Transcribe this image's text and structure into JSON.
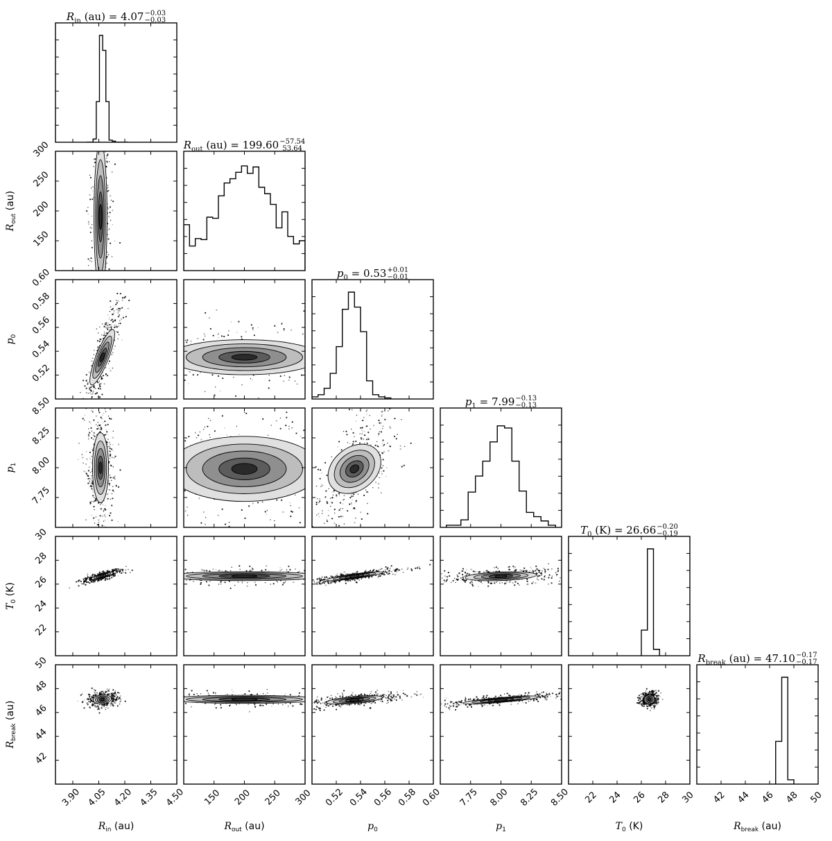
{
  "chart_data": {
    "type": "corner",
    "parameters": [
      {
        "id": "rin",
        "symbol": "R",
        "sub": "in",
        "unit": "(au)",
        "range": [
          3.8,
          4.5
        ],
        "ticks": [
          "3.90",
          "4.05",
          "4.20",
          "4.35",
          "4.50"
        ],
        "tick_values": [
          3.9,
          4.05,
          4.2,
          4.35,
          4.5
        ],
        "title": {
          "value": "4.07",
          "plus": "−0.03",
          "minus": "−0.03"
        },
        "hist": [
          0,
          0,
          0.03,
          0.38,
          1.0,
          0.86,
          0.38,
          0.02,
          0.01,
          0,
          0,
          0,
          0
        ],
        "hist_range": [
          3.98,
          4.22
        ]
      },
      {
        "id": "rout",
        "symbol": "R",
        "sub": "out",
        "unit": "(au)",
        "range": [
          100,
          300
        ],
        "ticks": [
          "150",
          "200",
          "250",
          "300"
        ],
        "tick_values": [
          150,
          200,
          250,
          300
        ],
        "title": {
          "value": "199.60",
          "plus": "−57.54",
          "minus": "53.64"
        },
        "hist": [
          0.43,
          0.23,
          0.3,
          0.29,
          0.5,
          0.49,
          0.7,
          0.82,
          0.86,
          0.92,
          0.98,
          0.91,
          0.97,
          0.78,
          0.72,
          0.62,
          0.4,
          0.55,
          0.32,
          0.25,
          0.28
        ],
        "hist_range": [
          100,
          300
        ]
      },
      {
        "id": "p0",
        "symbol": "p",
        "sub": "0",
        "unit": "",
        "range": [
          0.5,
          0.6
        ],
        "ticks": [
          "0.52",
          "0.54",
          "0.56",
          "0.58",
          "0.60"
        ],
        "tick_values": [
          0.52,
          0.54,
          0.56,
          0.58,
          0.6
        ],
        "title": {
          "value": "0.53",
          "plus": "+0.01",
          "minus": "−0.01"
        },
        "hist": [
          0.02,
          0.04,
          0.1,
          0.24,
          0.49,
          0.84,
          1.0,
          0.86,
          0.63,
          0.17,
          0.04,
          0.02,
          0.01
        ],
        "hist_range": [
          0.5,
          0.565
        ]
      },
      {
        "id": "p1",
        "symbol": "p",
        "sub": "1",
        "unit": "",
        "range": [
          7.5,
          8.5
        ],
        "ticks": [
          "7.75",
          "8.00",
          "8.25",
          "8.50"
        ],
        "tick_values": [
          7.75,
          8.0,
          8.25,
          8.5
        ],
        "title": {
          "value": "7.99",
          "plus": "−0.13",
          "minus": "−0.13"
        },
        "hist": [
          0.02,
          0.02,
          0.07,
          0.33,
          0.48,
          0.62,
          0.8,
          0.95,
          0.93,
          0.62,
          0.34,
          0.14,
          0.1,
          0.06,
          0.02
        ],
        "hist_range": [
          7.55,
          8.45
        ]
      },
      {
        "id": "t0",
        "symbol": "T",
        "sub": "0",
        "unit": "(K)",
        "range": [
          20,
          30
        ],
        "ticks": [
          "22",
          "24",
          "26",
          "28",
          "30"
        ],
        "tick_values": [
          22,
          24,
          26,
          28,
          30
        ],
        "title": {
          "value": "26.66",
          "plus": "−0.20",
          "minus": "−0.19"
        },
        "hist": [
          0.24,
          1.0,
          0.06
        ],
        "hist_range": [
          26.0,
          27.5
        ]
      },
      {
        "id": "rbreak",
        "symbol": "R",
        "sub": "break",
        "unit": "(au)",
        "range": [
          40,
          50
        ],
        "ticks": [
          "42",
          "44",
          "46",
          "48",
          "50"
        ],
        "tick_values": [
          42,
          44,
          46,
          48,
          50
        ],
        "title": {
          "value": "47.10",
          "plus": "−0.17",
          "minus": "−0.17"
        },
        "hist": [
          0.4,
          1.0,
          0.04
        ],
        "hist_range": [
          46.5,
          48.0
        ]
      }
    ],
    "ytick_overrides": {
      "rout": {
        "ticks": [
          "150",
          "200",
          "250",
          "300"
        ]
      },
      "p0": {
        "ticks": [
          "0.52",
          "0.54",
          "0.56",
          "0.58",
          "0.60"
        ]
      },
      "p1": {
        "ticks": [
          "7.75",
          "8.00",
          "8.25",
          "8.50"
        ]
      },
      "t0": {
        "ticks": [
          "22",
          "24",
          "26",
          "28",
          "30"
        ]
      },
      "rbreak": {
        "ticks": [
          "42",
          "44",
          "46",
          "48",
          "50"
        ]
      }
    },
    "pair_blobs": {
      "rout|rin": {
        "cx": 4.06,
        "cy": 190,
        "sx": 0.018,
        "sy": 60,
        "rho": 0.0
      },
      "p0|rin": {
        "cx": 4.07,
        "cy": 0.535,
        "sx": 0.03,
        "sy": 0.013,
        "rho": 0.85
      },
      "p0|rout": {
        "cx": 200,
        "cy": 0.535,
        "sx": 60,
        "sy": 0.007,
        "rho": 0.0
      },
      "p1|rin": {
        "cx": 4.06,
        "cy": 8.0,
        "sx": 0.022,
        "sy": 0.14,
        "rho": 0.0
      },
      "p1|rout": {
        "cx": 200,
        "cy": 7.99,
        "sx": 60,
        "sy": 0.13,
        "rho": 0.0
      },
      "p1|p0": {
        "cx": 0.535,
        "cy": 7.99,
        "sx": 0.009,
        "sy": 0.13,
        "rho": 0.55
      },
      "t0|rin": {
        "cx": 4.07,
        "cy": 26.7,
        "sx": 0.03,
        "sy": 0.15,
        "rho": 0.8
      },
      "t0|rout": {
        "cx": 200,
        "cy": 26.67,
        "sx": 60,
        "sy": 0.18,
        "rho": 0.0
      },
      "t0|p0": {
        "cx": 0.535,
        "cy": 26.66,
        "sx": 0.011,
        "sy": 0.18,
        "rho": 0.85
      },
      "t0|p1": {
        "cx": 8.0,
        "cy": 26.66,
        "sx": 0.14,
        "sy": 0.18,
        "rho": 0.3
      },
      "rbreak|rin": {
        "cx": 4.07,
        "cy": 47.1,
        "sx": 0.025,
        "sy": 0.18,
        "rho": 0.2
      },
      "rbreak|rout": {
        "cx": 200,
        "cy": 47.1,
        "sx": 60,
        "sy": 0.16,
        "rho": 0.0
      },
      "rbreak|p0": {
        "cx": 0.535,
        "cy": 47.05,
        "sx": 0.011,
        "sy": 0.17,
        "rho": 0.6
      },
      "rbreak|p1": {
        "cx": 8.0,
        "cy": 47.05,
        "sx": 0.15,
        "sy": 0.16,
        "rho": 0.8
      },
      "rbreak|t0": {
        "cx": 26.66,
        "cy": 47.1,
        "sx": 0.2,
        "sy": 0.17,
        "rho": 0.1
      }
    },
    "colors": {
      "frame": "#000000",
      "contour_levels": [
        "#e0e0e0",
        "#bdbdbd",
        "#8f8f8f",
        "#5c5c5c",
        "#2a2a2a"
      ],
      "points": "#000000"
    }
  }
}
